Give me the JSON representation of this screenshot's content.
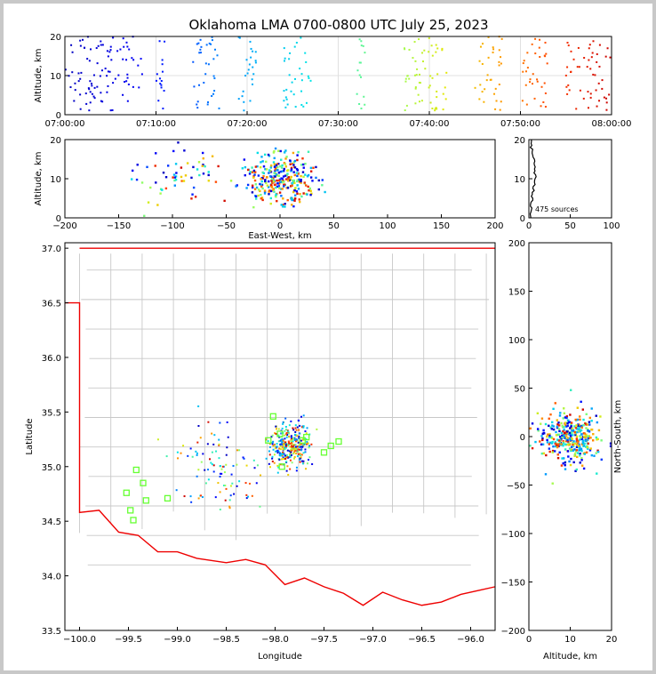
{
  "title": "Oklahoma LMA 0700-0800 UTC July 25, 2023",
  "source_count_label": "475 sources",
  "colors": {
    "counties": "#c8c8c8",
    "state": "#ee0000",
    "station": "#66ff33",
    "density": "#000000"
  },
  "chart_data": [
    {
      "type": "scatter",
      "name_key": "time-altitude",
      "xlabel": "",
      "ylabel": "Altitude, km",
      "xticks": [
        "07:00:00",
        "07:10:00",
        "07:20:00",
        "07:30:00",
        "07:40:00",
        "07:50:00",
        "08:00:00"
      ],
      "xlim_minutes": [
        0,
        60
      ],
      "ylim": [
        0,
        20
      ],
      "yticks": [
        0,
        10,
        20
      ],
      "color_by": "time (blue→red)",
      "clusters_minutes": [
        [
          0,
          4
        ],
        [
          3.5,
          8.5
        ],
        [
          10,
          11
        ],
        [
          14,
          17
        ],
        [
          19,
          21
        ],
        [
          24,
          27
        ],
        [
          32,
          33
        ],
        [
          37,
          39
        ],
        [
          39,
          42
        ],
        [
          45,
          48
        ],
        [
          50,
          53
        ],
        [
          55,
          60
        ]
      ],
      "grid": true
    },
    {
      "type": "scatter",
      "name_key": "east-west-altitude",
      "xlabel": "East-West, km",
      "ylabel": "Altitude, km",
      "xlim": [
        -200,
        200
      ],
      "xticks": [
        -200,
        -150,
        -100,
        -50,
        0,
        50,
        100,
        150,
        200
      ],
      "ylim": [
        0,
        20
      ],
      "yticks": [
        0,
        10,
        20
      ]
    },
    {
      "type": "line",
      "name_key": "altitude-histogram",
      "xlim": [
        0,
        100
      ],
      "xticks": [
        0,
        50,
        100
      ],
      "ylim": [
        0,
        20
      ],
      "yticks": [
        0,
        10,
        20
      ],
      "annotation": "475 sources"
    },
    {
      "type": "scatter",
      "name_key": "plan-view",
      "xlabel": "Longitude",
      "ylabel": "Latitude",
      "xlim": [
        -100.15,
        -95.75
      ],
      "ylim": [
        33.5,
        37.05
      ],
      "xticks": [
        -100.0,
        -99.5,
        -99.0,
        -98.5,
        -98.0,
        -97.5,
        -97.0,
        -96.5,
        -96.0
      ],
      "xticklabels": [
        "−100.0",
        "−99.5",
        "−99.0",
        "−98.5",
        "−98.0",
        "−97.5",
        "−97.0",
        "−96.5",
        "−96.0"
      ],
      "yticks": [
        33.5,
        34.0,
        34.5,
        35.0,
        35.5,
        36.0,
        36.5,
        37.0
      ],
      "stations": [
        [
          -99.42,
          34.97
        ],
        [
          -99.35,
          34.85
        ],
        [
          -99.32,
          34.69
        ],
        [
          -99.1,
          34.71
        ],
        [
          -99.52,
          34.76
        ],
        [
          -99.48,
          34.6
        ],
        [
          -99.45,
          34.51
        ],
        [
          -98.02,
          35.46
        ],
        [
          -98.07,
          35.24
        ],
        [
          -97.93,
          35.0
        ],
        [
          -97.95,
          35.3
        ],
        [
          -97.68,
          35.27
        ],
        [
          -97.72,
          35.24
        ],
        [
          -97.5,
          35.13
        ],
        [
          -97.43,
          35.19
        ],
        [
          -97.35,
          35.23
        ]
      ]
    },
    {
      "type": "scatter",
      "name_key": "altitude-north-south",
      "xlabel": "Altitude, km",
      "ylabel": "North-South, km",
      "xlim": [
        0,
        20
      ],
      "xticks": [
        0,
        10,
        20
      ],
      "ylim": [
        -200,
        200
      ],
      "yticks": [
        -200,
        -150,
        -100,
        -50,
        0,
        50,
        100,
        150,
        200
      ]
    }
  ]
}
